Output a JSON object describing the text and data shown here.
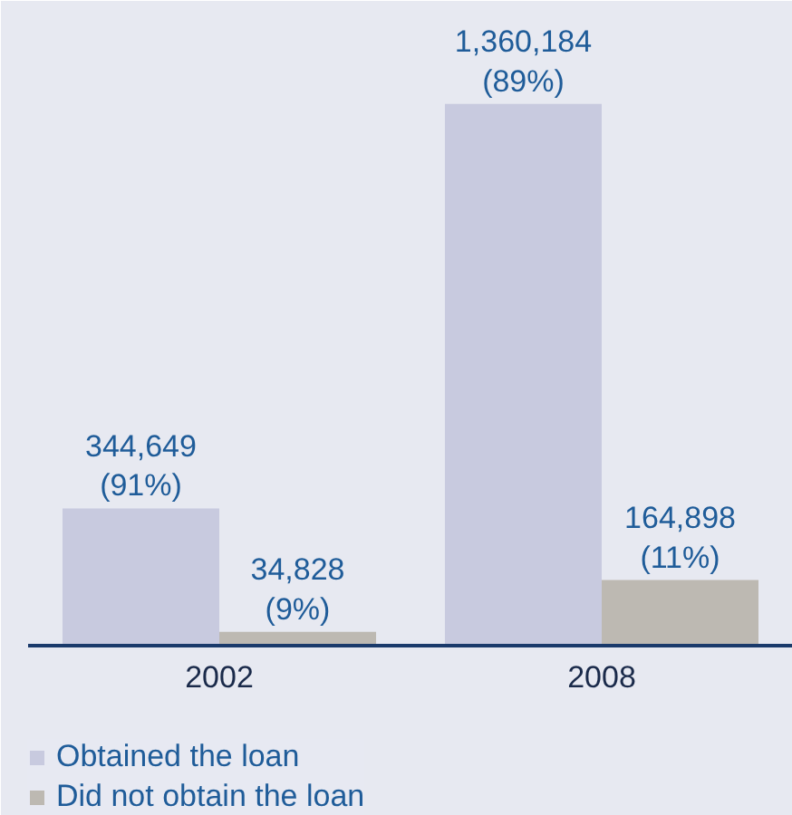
{
  "chart_data": {
    "type": "bar",
    "categories": [
      "2002",
      "2008"
    ],
    "series": [
      {
        "name": "Obtained the loan",
        "color": "#c8cadf",
        "values": [
          344649,
          1360184
        ],
        "value_labels": [
          "344,649\n(91%)",
          "1,360,184\n(89%)"
        ]
      },
      {
        "name": "Did not obtain the loan",
        "color": "#bdb9b2",
        "values": [
          34828,
          164898
        ],
        "value_labels": [
          "34,828\n(9%)",
          "164,898\n(11%)"
        ]
      }
    ],
    "legend": "bottom"
  }
}
